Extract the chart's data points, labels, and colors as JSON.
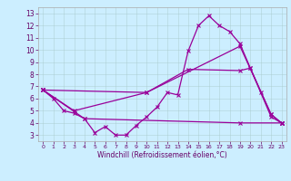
{
  "xlabel": "Windchill (Refroidissement éolien,°C)",
  "bg_color": "#cceeff",
  "line_color": "#990099",
  "xlim": [
    -0.5,
    23.5
  ],
  "ylim": [
    2.5,
    13.5
  ],
  "xticks": [
    0,
    1,
    2,
    3,
    4,
    5,
    6,
    7,
    8,
    9,
    10,
    11,
    12,
    13,
    14,
    15,
    16,
    17,
    18,
    19,
    20,
    21,
    22,
    23
  ],
  "yticks": [
    3,
    4,
    5,
    6,
    7,
    8,
    9,
    10,
    11,
    12,
    13
  ],
  "line1_x": [
    0,
    1,
    2,
    3,
    4,
    5,
    6,
    7,
    8,
    9,
    10,
    11,
    12,
    13,
    14,
    15,
    16,
    17,
    18,
    19,
    20,
    21,
    22,
    23
  ],
  "line1_y": [
    6.7,
    6.0,
    5.0,
    4.8,
    4.35,
    3.2,
    3.7,
    3.0,
    3.0,
    3.8,
    4.5,
    5.3,
    6.5,
    6.3,
    9.9,
    12.0,
    12.8,
    12.0,
    11.5,
    10.5,
    8.5,
    6.5,
    4.5,
    4.0
  ],
  "line2_x": [
    0,
    3,
    10,
    14,
    19,
    20,
    22,
    23
  ],
  "line2_y": [
    6.7,
    5.0,
    6.5,
    8.4,
    8.3,
    8.5,
    4.7,
    4.0
  ],
  "line3_x": [
    0,
    4,
    19,
    23
  ],
  "line3_y": [
    6.7,
    4.35,
    4.0,
    4.0
  ],
  "line4_x": [
    0,
    10,
    19,
    22,
    23
  ],
  "line4_y": [
    6.7,
    6.5,
    10.3,
    4.7,
    4.0
  ],
  "tick_fontsize": 5.5,
  "xlabel_fontsize": 5.5,
  "grid_color": "#aacccc",
  "spine_color": "#aaaaaa",
  "tick_color": "#660066"
}
